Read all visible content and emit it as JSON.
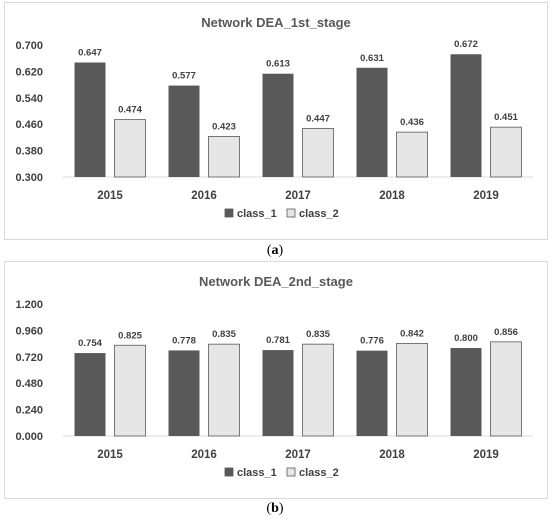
{
  "colors": {
    "class_1": "#595959",
    "class_2": "#e6e6e6",
    "border": "#333333"
  },
  "captions": {
    "a": "a",
    "b": "b"
  },
  "chart_data": [
    {
      "type": "bar",
      "title": "Network DEA_1st_stage",
      "categories": [
        "2015",
        "2016",
        "2017",
        "2018",
        "2019"
      ],
      "series": [
        {
          "name": "class_1",
          "values": [
            0.647,
            0.577,
            0.613,
            0.631,
            0.672
          ]
        },
        {
          "name": "class_2",
          "values": [
            0.474,
            0.423,
            0.447,
            0.436,
            0.451
          ]
        }
      ],
      "value_labels": [
        [
          "0.647",
          "0.577",
          "0.613",
          "0.631",
          "0.672"
        ],
        [
          "0.474",
          "0.423",
          "0.447",
          "0.436",
          "0.451"
        ]
      ],
      "ylim": [
        0.3,
        0.7
      ],
      "yticks": [
        "0.300",
        "0.380",
        "0.460",
        "0.540",
        "0.620",
        "0.700"
      ],
      "legend": "bottom",
      "grid": false
    },
    {
      "type": "bar",
      "title": "Network DEA_2nd_stage",
      "categories": [
        "2015",
        "2016",
        "2017",
        "2018",
        "2019"
      ],
      "series": [
        {
          "name": "class_1",
          "values": [
            0.754,
            0.778,
            0.781,
            0.776,
            0.8
          ]
        },
        {
          "name": "class_2",
          "values": [
            0.825,
            0.835,
            0.835,
            0.842,
            0.856
          ]
        }
      ],
      "value_labels": [
        [
          "0.754",
          "0.778",
          "0.781",
          "0.776",
          "0.800"
        ],
        [
          "0.825",
          "0.835",
          "0.835",
          "0.842",
          "0.856"
        ]
      ],
      "ylim": [
        0.0,
        1.2
      ],
      "yticks": [
        "0.000",
        "0.240",
        "0.480",
        "0.720",
        "0.960",
        "1.200"
      ],
      "legend": "bottom",
      "grid": false
    }
  ]
}
